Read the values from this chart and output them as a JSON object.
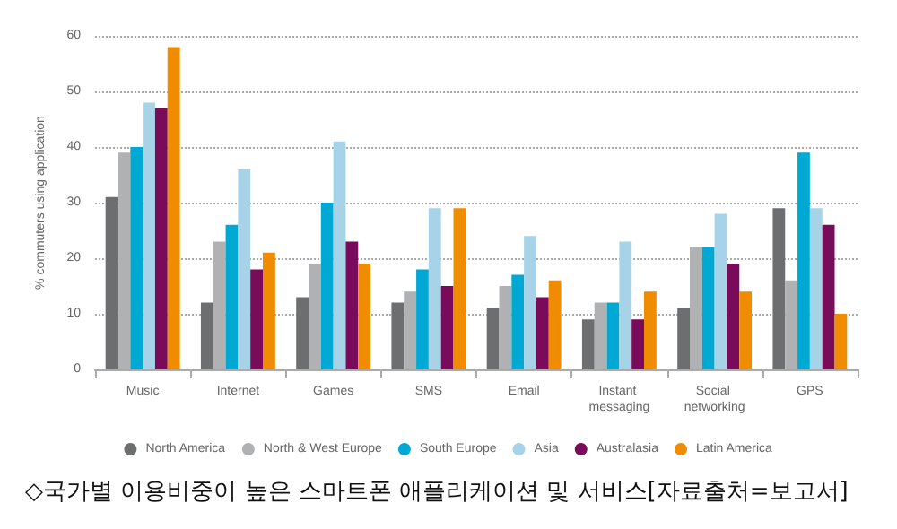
{
  "chart_data": {
    "type": "bar",
    "ylabel": "% commuters using application",
    "categories": [
      "Music",
      "Internet",
      "Games",
      "SMS",
      "Email",
      "Instant messaging",
      "Social networking",
      "GPS"
    ],
    "series": [
      {
        "name": "North America",
        "color": "#6d6e70",
        "values": [
          31,
          12,
          13,
          12,
          11,
          9,
          11,
          29
        ]
      },
      {
        "name": "North & West Europe",
        "color": "#b0b1b3",
        "values": [
          39,
          23,
          19,
          14,
          15,
          12,
          22,
          16
        ]
      },
      {
        "name": "South Europe",
        "color": "#00a8d4",
        "values": [
          40,
          26,
          30,
          18,
          17,
          12,
          22,
          39
        ]
      },
      {
        "name": "Asia",
        "color": "#a6d3e8",
        "values": [
          48,
          36,
          41,
          29,
          24,
          23,
          28,
          29
        ]
      },
      {
        "name": "Australasia",
        "color": "#7a0a5a",
        "values": [
          47,
          18,
          23,
          15,
          13,
          9,
          19,
          26
        ]
      },
      {
        "name": "Latin America",
        "color": "#f08c00",
        "values": [
          58,
          21,
          19,
          29,
          16,
          14,
          14,
          10
        ]
      }
    ],
    "ylim": [
      0,
      60
    ],
    "yticks": [
      0,
      10,
      20,
      30,
      40,
      50,
      60
    ],
    "grid": "y",
    "legend": "bottom",
    "annotations": [
      "◇국가별 이용비중이 높은 스마트폰 애플리케이션 및 서비스[자료출처=보고서]"
    ]
  }
}
